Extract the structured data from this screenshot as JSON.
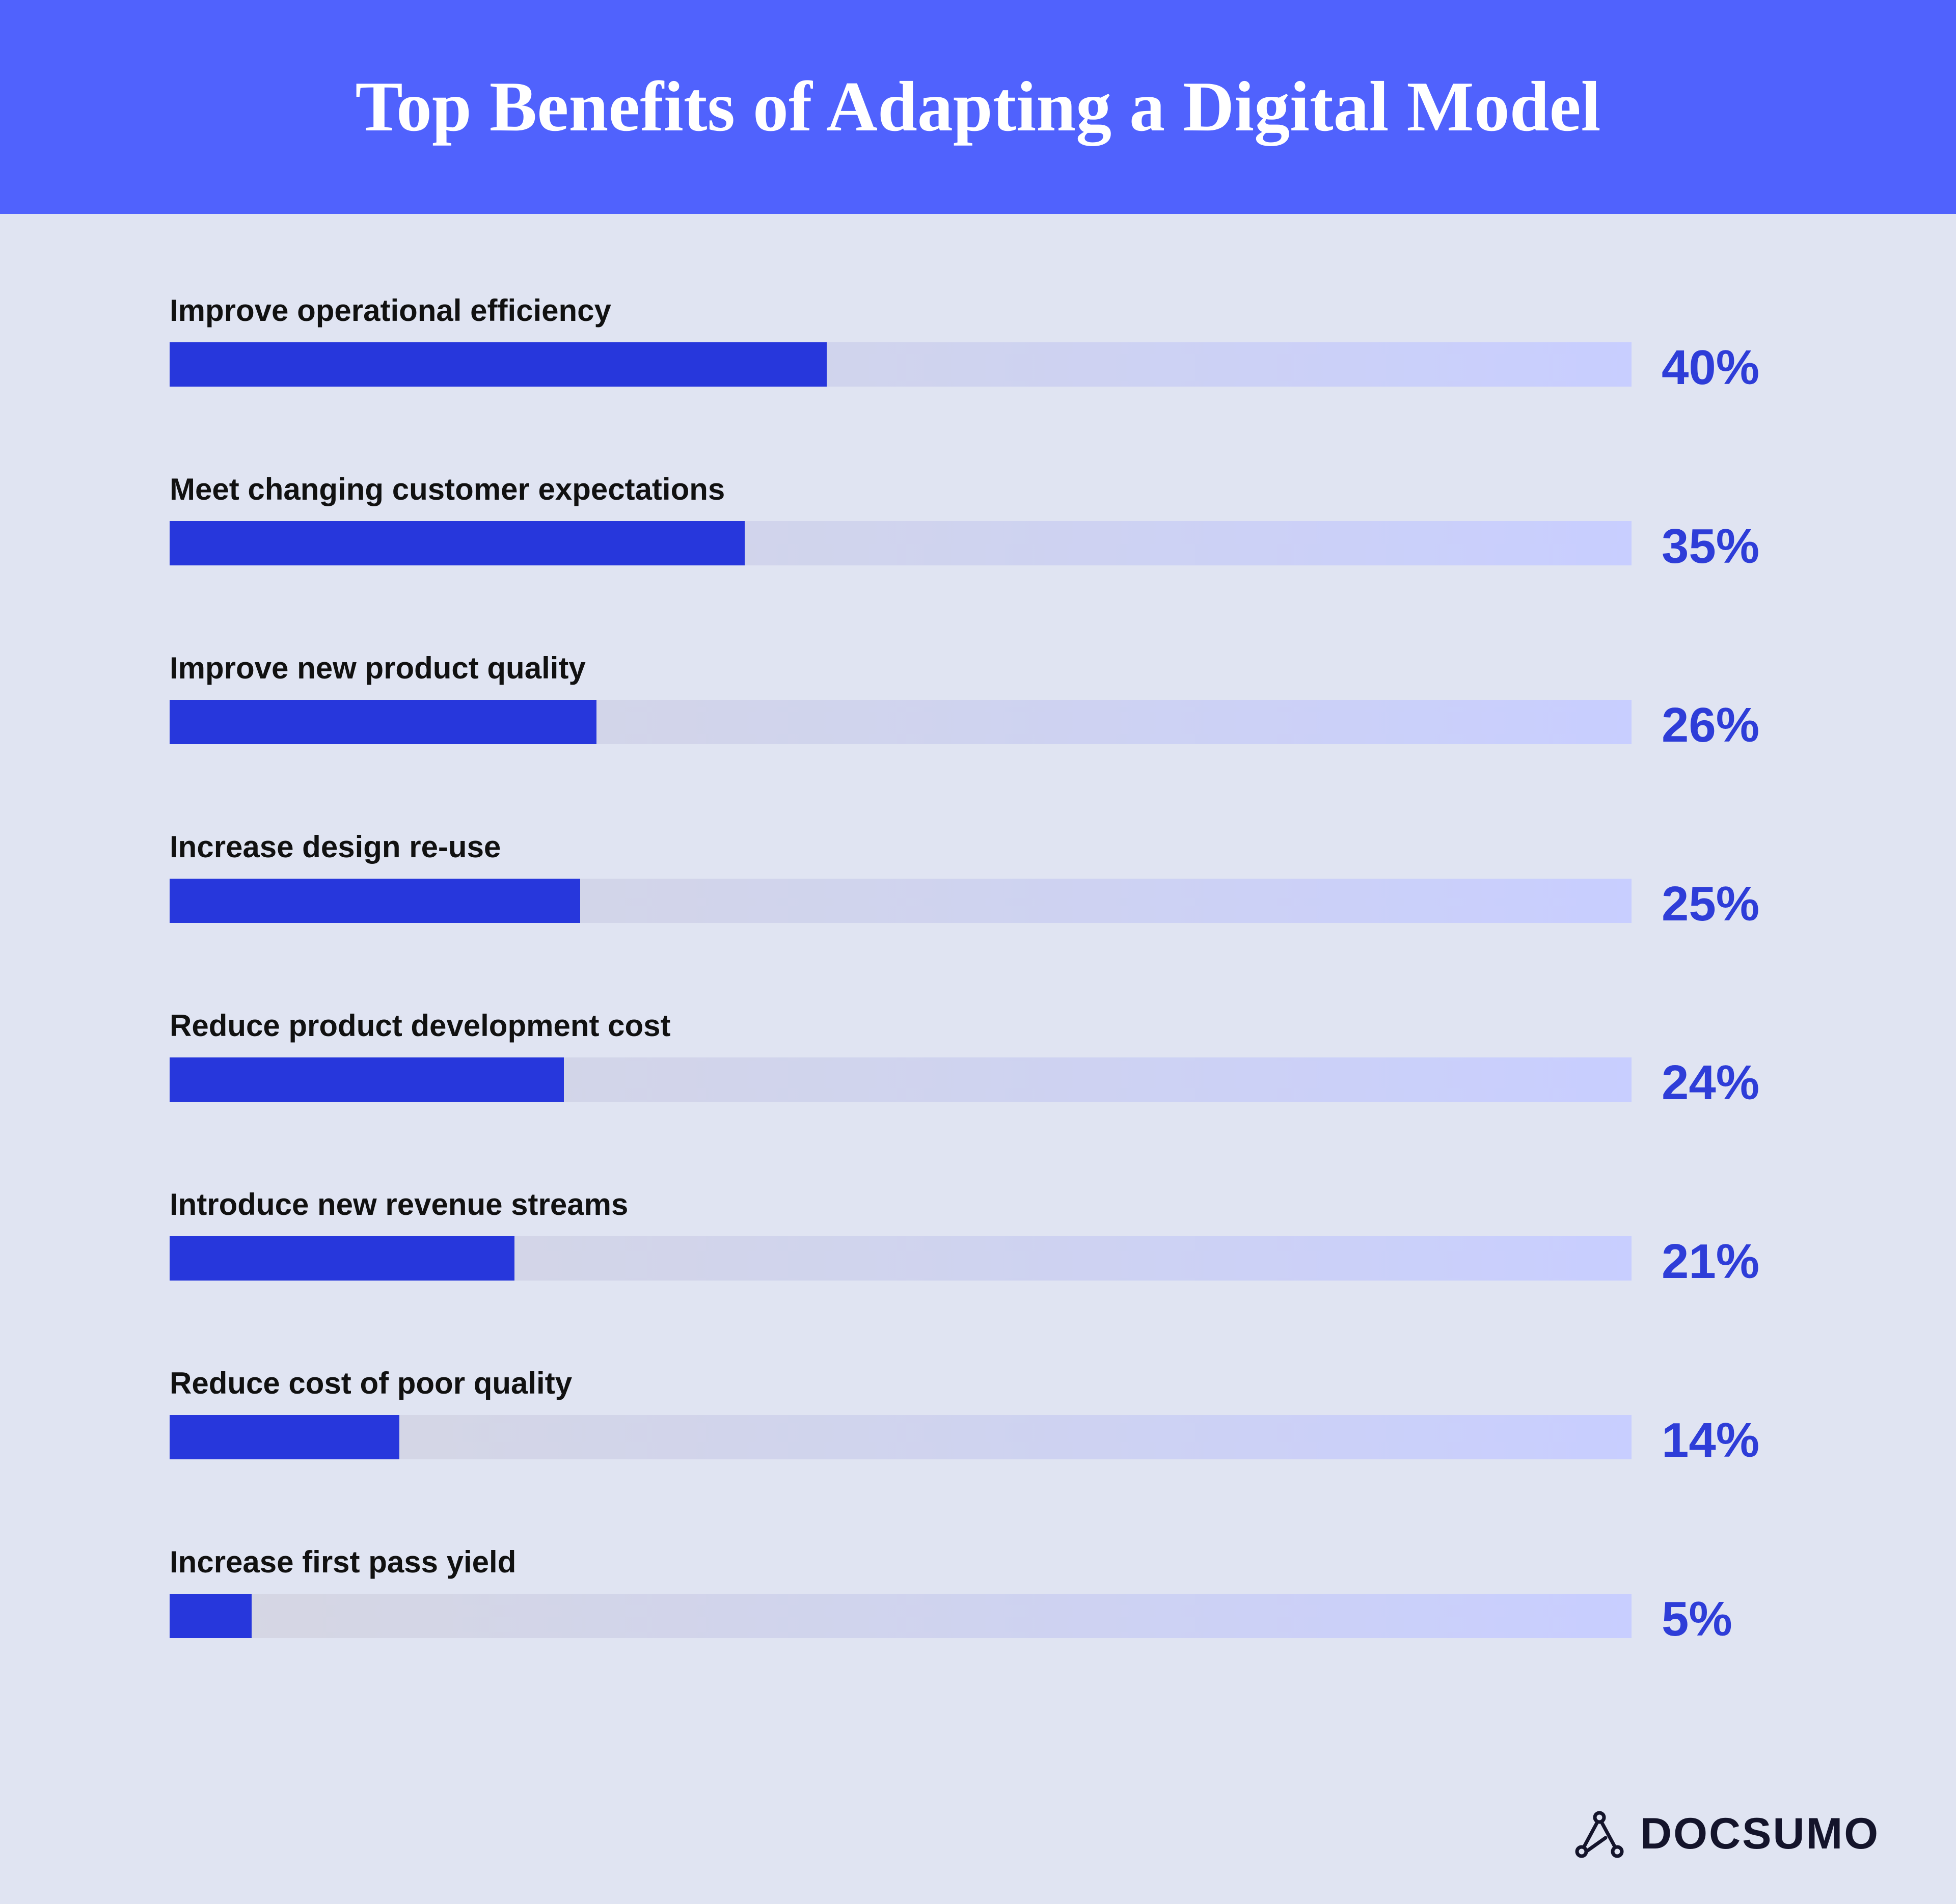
{
  "header": {
    "title": "Top Benefits of Adapting a Digital Model"
  },
  "brand": {
    "name": "DOCSUMO",
    "icon": "docsumo-logo-icon"
  },
  "colors": {
    "header_bg": "#5062fd",
    "page_bg": "#e0e4f2",
    "bar_fill": "#2737dc",
    "value_text": "#2e3dd8"
  },
  "chart_data": {
    "type": "bar",
    "orientation": "horizontal",
    "title": "Top Benefits of Adapting a Digital Model",
    "xlim": [
      0,
      89
    ],
    "categories": [
      "Improve operational efficiency",
      "Meet changing customer expectations",
      "Improve new product quality",
      "Increase design re-use",
      "Reduce product development cost",
      "Introduce new revenue streams",
      "Reduce cost of poor quality",
      "Increase first pass yield"
    ],
    "values": [
      40,
      35,
      26,
      25,
      24,
      21,
      14,
      5
    ],
    "value_labels": [
      "40%",
      "35%",
      "26%",
      "25%",
      "24%",
      "21%",
      "14%",
      "5%"
    ],
    "grid": false,
    "legend": "none"
  }
}
